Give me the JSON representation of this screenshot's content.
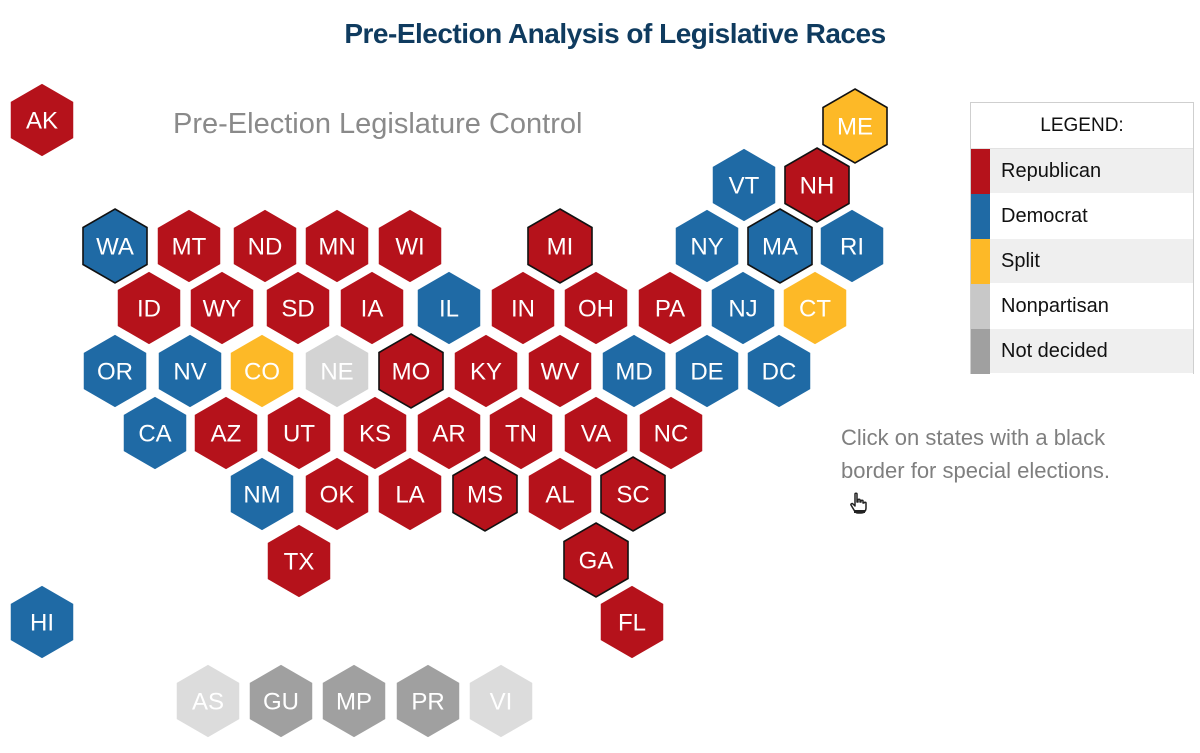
{
  "title": "Pre-Election Analysis of Legislative Races",
  "subtitle": "Pre-Election Legislature Control",
  "instructions": "Click on states with a black border for special elections.",
  "colors": {
    "Republican": "#b5121b",
    "Democrat": "#1f6aa5",
    "Split": "#fdb927",
    "Nonpartisan": "#d3d3d3",
    "NotDecided": "#a0a0a0"
  },
  "legend": {
    "title": "LEGEND:",
    "items": [
      {
        "label": "Republican",
        "color": "#b5121b"
      },
      {
        "label": "Democrat",
        "color": "#1f6aa5"
      },
      {
        "label": "Split",
        "color": "#fdb927"
      },
      {
        "label": "Nonpartisan",
        "color": "#c8c8c8"
      },
      {
        "label": "Not decided",
        "color": "#a0a0a0"
      }
    ]
  },
  "states": [
    {
      "abbr": "AK",
      "party": "Republican",
      "special": false
    },
    {
      "abbr": "ME",
      "party": "Split",
      "special": true
    },
    {
      "abbr": "VT",
      "party": "Democrat",
      "special": false
    },
    {
      "abbr": "NH",
      "party": "Republican",
      "special": true
    },
    {
      "abbr": "WA",
      "party": "Democrat",
      "special": true
    },
    {
      "abbr": "MT",
      "party": "Republican",
      "special": false
    },
    {
      "abbr": "ND",
      "party": "Republican",
      "special": false
    },
    {
      "abbr": "MN",
      "party": "Republican",
      "special": false
    },
    {
      "abbr": "WI",
      "party": "Republican",
      "special": false
    },
    {
      "abbr": "MI",
      "party": "Republican",
      "special": true
    },
    {
      "abbr": "NY",
      "party": "Democrat",
      "special": false
    },
    {
      "abbr": "MA",
      "party": "Democrat",
      "special": true
    },
    {
      "abbr": "RI",
      "party": "Democrat",
      "special": false
    },
    {
      "abbr": "ID",
      "party": "Republican",
      "special": false
    },
    {
      "abbr": "WY",
      "party": "Republican",
      "special": false
    },
    {
      "abbr": "SD",
      "party": "Republican",
      "special": false
    },
    {
      "abbr": "IA",
      "party": "Republican",
      "special": false
    },
    {
      "abbr": "IL",
      "party": "Democrat",
      "special": false
    },
    {
      "abbr": "IN",
      "party": "Republican",
      "special": false
    },
    {
      "abbr": "OH",
      "party": "Republican",
      "special": false
    },
    {
      "abbr": "PA",
      "party": "Republican",
      "special": false
    },
    {
      "abbr": "NJ",
      "party": "Democrat",
      "special": false
    },
    {
      "abbr": "CT",
      "party": "Split",
      "special": false
    },
    {
      "abbr": "OR",
      "party": "Democrat",
      "special": false
    },
    {
      "abbr": "NV",
      "party": "Democrat",
      "special": false
    },
    {
      "abbr": "CO",
      "party": "Split",
      "special": false
    },
    {
      "abbr": "NE",
      "party": "Nonpartisan",
      "special": false
    },
    {
      "abbr": "MO",
      "party": "Republican",
      "special": true
    },
    {
      "abbr": "KY",
      "party": "Republican",
      "special": false
    },
    {
      "abbr": "WV",
      "party": "Republican",
      "special": false
    },
    {
      "abbr": "MD",
      "party": "Democrat",
      "special": false
    },
    {
      "abbr": "DE",
      "party": "Democrat",
      "special": false
    },
    {
      "abbr": "DC",
      "party": "Democrat",
      "special": false
    },
    {
      "abbr": "CA",
      "party": "Democrat",
      "special": false
    },
    {
      "abbr": "AZ",
      "party": "Republican",
      "special": false
    },
    {
      "abbr": "UT",
      "party": "Republican",
      "special": false
    },
    {
      "abbr": "KS",
      "party": "Republican",
      "special": false
    },
    {
      "abbr": "AR",
      "party": "Republican",
      "special": false
    },
    {
      "abbr": "TN",
      "party": "Republican",
      "special": false
    },
    {
      "abbr": "VA",
      "party": "Republican",
      "special": false
    },
    {
      "abbr": "NC",
      "party": "Republican",
      "special": false
    },
    {
      "abbr": "NM",
      "party": "Democrat",
      "special": false
    },
    {
      "abbr": "OK",
      "party": "Republican",
      "special": false
    },
    {
      "abbr": "LA",
      "party": "Republican",
      "special": false
    },
    {
      "abbr": "MS",
      "party": "Republican",
      "special": true
    },
    {
      "abbr": "AL",
      "party": "Republican",
      "special": false
    },
    {
      "abbr": "SC",
      "party": "Republican",
      "special": true
    },
    {
      "abbr": "TX",
      "party": "Republican",
      "special": false
    },
    {
      "abbr": "GA",
      "party": "Republican",
      "special": true
    },
    {
      "abbr": "HI",
      "party": "Democrat",
      "special": false
    },
    {
      "abbr": "FL",
      "party": "Republican",
      "special": false
    }
  ],
  "territories": [
    {
      "abbr": "AS",
      "party": "Nonpartisan"
    },
    {
      "abbr": "GU",
      "party": "NotDecided"
    },
    {
      "abbr": "MP",
      "party": "NotDecided"
    },
    {
      "abbr": "PR",
      "party": "NotDecided"
    },
    {
      "abbr": "VI",
      "party": "Nonpartisan"
    }
  ]
}
